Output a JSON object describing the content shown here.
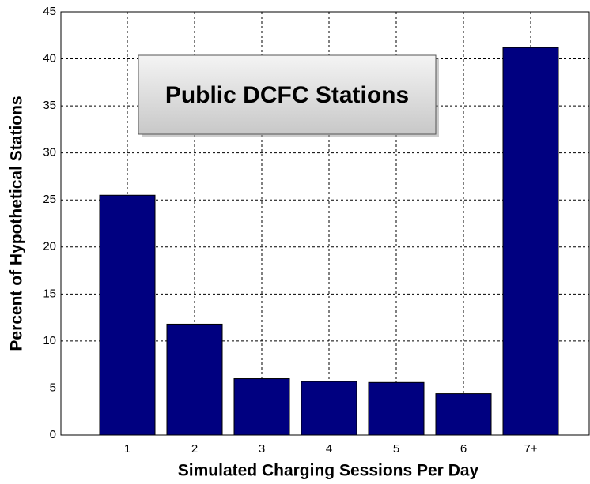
{
  "chart_data": {
    "type": "bar",
    "annotation": "Public DCFC Stations",
    "x_label": "Simulated Charging Sessions Per Day",
    "y_label": "Percent of Hypothetical Stations",
    "categories": [
      "1",
      "2",
      "3",
      "4",
      "5",
      "6",
      "7+"
    ],
    "values": [
      25.5,
      11.8,
      6.0,
      5.7,
      5.6,
      4.4,
      41.2
    ],
    "color": "#000080",
    "ylim": [
      0,
      45
    ],
    "yticks": [
      0,
      5,
      10,
      15,
      20,
      25,
      30,
      35,
      40,
      45
    ],
    "grid": true
  }
}
